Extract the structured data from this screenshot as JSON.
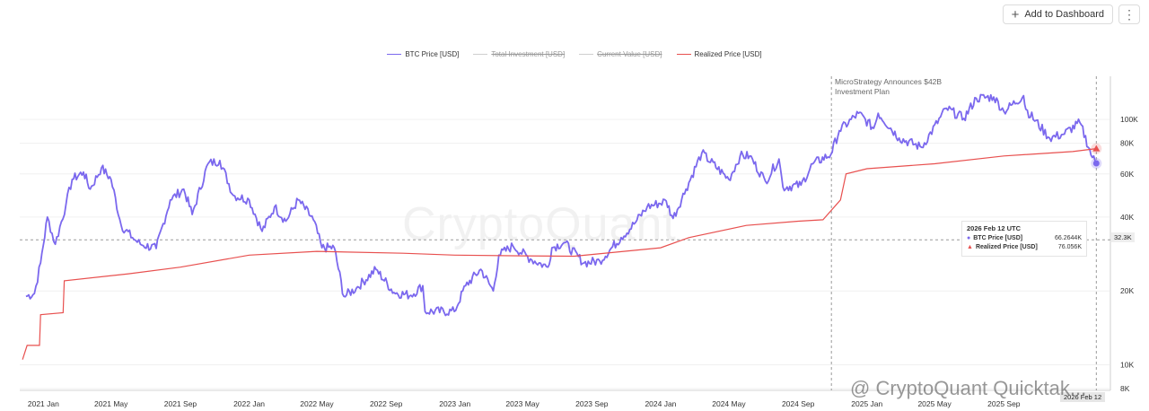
{
  "toolbar": {
    "add_label": "Add to Dashboard",
    "menu_icon": "more-vertical-icon"
  },
  "legend": [
    {
      "label": "BTC Price [USD]",
      "color": "#7b68ee",
      "active": true
    },
    {
      "label": "Total Investment [USD]",
      "color": "#cfcfcf",
      "active": false
    },
    {
      "label": "Current Value [USD]",
      "color": "#cfcfcf",
      "active": false
    },
    {
      "label": "Realized Price [USD]",
      "color": "#e8504f",
      "active": true
    }
  ],
  "annotation": {
    "line1": "MicroStrategy Announces $42B",
    "line2": "Investment Plan"
  },
  "background_mark": "CryptoQuant",
  "watermark": "@ CryptoQuant Quicktak...",
  "tooltip": {
    "date": "2026 Feb 12 UTC",
    "rows": [
      {
        "name": "BTC Price [USD]",
        "value": "66.2644K",
        "color": "#7b68ee",
        "marker": "●"
      },
      {
        "name": "Realized Price [USD]",
        "value": "76.056K",
        "color": "#e8504f",
        "marker": "▲"
      }
    ]
  },
  "crosshair": {
    "price_label": "32.3K",
    "date_label": "2026 Feb 12"
  },
  "chart_data": {
    "type": "line",
    "y_scale": "log",
    "ylim": [
      8000,
      150000
    ],
    "xlim": [
      "2020-11-20",
      "2026-03-01"
    ],
    "y_ticks": [
      {
        "value": 8000,
        "label": "8K"
      },
      {
        "value": 10000,
        "label": "10K"
      },
      {
        "value": 20000,
        "label": "20K"
      },
      {
        "value": 40000,
        "label": "40K"
      },
      {
        "value": 60000,
        "label": "60K"
      },
      {
        "value": 80000,
        "label": "80K"
      },
      {
        "value": 100000,
        "label": "100K"
      }
    ],
    "x_ticks": [
      {
        "date": "2021-01-01",
        "label": "2021 Jan"
      },
      {
        "date": "2021-05-01",
        "label": "2021 May"
      },
      {
        "date": "2021-09-01",
        "label": "2021 Sep"
      },
      {
        "date": "2022-01-01",
        "label": "2022 Jan"
      },
      {
        "date": "2022-05-01",
        "label": "2022 May"
      },
      {
        "date": "2022-09-01",
        "label": "2022 Sep"
      },
      {
        "date": "2023-01-01",
        "label": "2023 Jan"
      },
      {
        "date": "2023-05-01",
        "label": "2023 May"
      },
      {
        "date": "2023-09-01",
        "label": "2023 Sep"
      },
      {
        "date": "2024-01-01",
        "label": "2024 Jan"
      },
      {
        "date": "2024-05-01",
        "label": "2024 May"
      },
      {
        "date": "2024-09-01",
        "label": "2024 Sep"
      },
      {
        "date": "2025-01-01",
        "label": "2025 Jan"
      },
      {
        "date": "2025-05-01",
        "label": "2025 May"
      },
      {
        "date": "2025-09-01",
        "label": "2025 Sep"
      }
    ],
    "annotation_date": "2024-10-30",
    "crosshair_date": "2026-02-12",
    "crosshair_value": 32300,
    "series": [
      {
        "name": "BTC Price [USD]",
        "color": "#7b68ee",
        "points": [
          [
            "2020-12-01",
            19000
          ],
          [
            "2020-12-16",
            19500
          ],
          [
            "2020-12-27",
            26000
          ],
          [
            "2021-01-08",
            40000
          ],
          [
            "2021-01-22",
            31000
          ],
          [
            "2021-02-10",
            45000
          ],
          [
            "2021-02-21",
            57000
          ],
          [
            "2021-03-13",
            61000
          ],
          [
            "2021-03-25",
            52000
          ],
          [
            "2021-04-14",
            63500
          ],
          [
            "2021-05-01",
            57000
          ],
          [
            "2021-05-19",
            37000
          ],
          [
            "2021-06-08",
            33000
          ],
          [
            "2021-06-22",
            31000
          ],
          [
            "2021-07-20",
            29800
          ],
          [
            "2021-08-14",
            47000
          ],
          [
            "2021-09-07",
            52000
          ],
          [
            "2021-09-22",
            41000
          ],
          [
            "2021-10-20",
            66000
          ],
          [
            "2021-11-10",
            68000
          ],
          [
            "2021-12-04",
            49000
          ],
          [
            "2022-01-01",
            47000
          ],
          [
            "2022-01-24",
            35000
          ],
          [
            "2022-02-15",
            44000
          ],
          [
            "2022-03-07",
            38500
          ],
          [
            "2022-03-29",
            47000
          ],
          [
            "2022-04-25",
            39000
          ],
          [
            "2022-05-10",
            30000
          ],
          [
            "2022-06-01",
            30000
          ],
          [
            "2022-06-18",
            19000
          ],
          [
            "2022-07-10",
            20500
          ],
          [
            "2022-08-14",
            24500
          ],
          [
            "2022-09-15",
            19700
          ],
          [
            "2022-10-15",
            19200
          ],
          [
            "2022-11-05",
            21000
          ],
          [
            "2022-11-09",
            16500
          ],
          [
            "2022-12-31",
            16500
          ],
          [
            "2023-01-20",
            21000
          ],
          [
            "2023-02-16",
            24500
          ],
          [
            "2023-03-10",
            20000
          ],
          [
            "2023-03-20",
            28000
          ],
          [
            "2023-04-14",
            30500
          ],
          [
            "2023-05-15",
            27000
          ],
          [
            "2023-06-15",
            25000
          ],
          [
            "2023-06-22",
            30000
          ],
          [
            "2023-07-14",
            31500
          ],
          [
            "2023-08-18",
            26000
          ],
          [
            "2023-09-15",
            26500
          ],
          [
            "2023-10-23",
            33000
          ],
          [
            "2023-11-15",
            37500
          ],
          [
            "2023-12-08",
            44000
          ],
          [
            "2024-01-11",
            46500
          ],
          [
            "2024-01-23",
            39500
          ],
          [
            "2024-02-15",
            52000
          ],
          [
            "2024-03-14",
            73000
          ],
          [
            "2024-05-01",
            57000
          ],
          [
            "2024-05-21",
            71000
          ],
          [
            "2024-06-07",
            71000
          ],
          [
            "2024-07-05",
            56000
          ],
          [
            "2024-07-29",
            69000
          ],
          [
            "2024-08-05",
            53000
          ],
          [
            "2024-09-06",
            54000
          ],
          [
            "2024-09-27",
            66000
          ],
          [
            "2024-10-29",
            72000
          ],
          [
            "2024-11-13",
            90000
          ],
          [
            "2024-12-17",
            106000
          ],
          [
            "2025-01-13",
            92000
          ],
          [
            "2025-01-21",
            106000
          ],
          [
            "2025-02-27",
            84000
          ],
          [
            "2025-04-08",
            77000
          ],
          [
            "2025-05-22",
            111000
          ],
          [
            "2025-06-22",
            101000
          ],
          [
            "2025-07-14",
            122000
          ],
          [
            "2025-08-14",
            123500
          ],
          [
            "2025-09-01",
            108000
          ],
          [
            "2025-10-06",
            125000
          ],
          [
            "2025-10-10",
            110000
          ],
          [
            "2025-11-21",
            84000
          ],
          [
            "2025-12-15",
            87000
          ],
          [
            "2026-01-14",
            97000
          ],
          [
            "2026-02-05",
            70000
          ],
          [
            "2026-02-12",
            66264
          ]
        ]
      },
      {
        "name": "Realized Price [USD]",
        "color": "#e8504f",
        "points": [
          [
            "2020-11-25",
            10500
          ],
          [
            "2020-12-03",
            12000
          ],
          [
            "2020-12-25",
            12000
          ],
          [
            "2020-12-27",
            16000
          ],
          [
            "2021-02-05",
            16300
          ],
          [
            "2021-02-07",
            22000
          ],
          [
            "2021-06-01",
            23500
          ],
          [
            "2021-09-01",
            25000
          ],
          [
            "2022-01-01",
            28000
          ],
          [
            "2022-05-01",
            29000
          ],
          [
            "2022-10-01",
            28500
          ],
          [
            "2023-01-01",
            28000
          ],
          [
            "2023-05-01",
            27800
          ],
          [
            "2023-08-01",
            27700
          ],
          [
            "2024-01-01",
            30000
          ],
          [
            "2024-02-20",
            33000
          ],
          [
            "2024-06-01",
            37000
          ],
          [
            "2024-09-01",
            38500
          ],
          [
            "2024-10-15",
            39000
          ],
          [
            "2024-11-15",
            47000
          ],
          [
            "2024-11-25",
            60000
          ],
          [
            "2025-01-01",
            63000
          ],
          [
            "2025-05-01",
            66000
          ],
          [
            "2025-09-01",
            71000
          ],
          [
            "2026-01-01",
            74000
          ],
          [
            "2026-02-12",
            76056
          ]
        ]
      }
    ]
  }
}
